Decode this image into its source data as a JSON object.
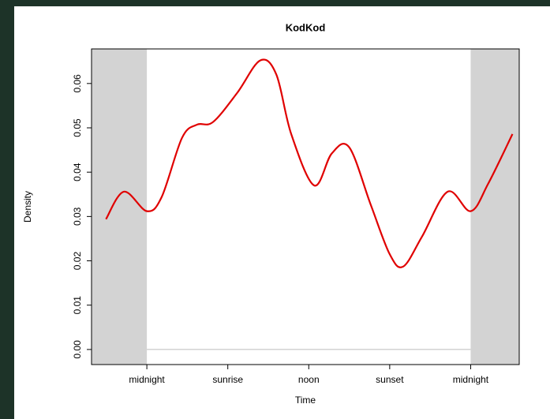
{
  "chart_data": {
    "type": "line",
    "title": "KodKod",
    "x_label": "Time",
    "y_label": "Density",
    "x": [
      -3.03,
      -1.7,
      0,
      1.1,
      2.6,
      3.7,
      4.9,
      6.7,
      8.4,
      9.6,
      10.7,
      12.4,
      13.7,
      15.0,
      16.6,
      18,
      19.0,
      20.4,
      22.3,
      24,
      25.3,
      27.1
    ],
    "series": [
      {
        "name": "Density",
        "color": "#e00000",
        "values": [
          0.0294,
          0.0356,
          0.0312,
          0.0344,
          0.0477,
          0.0507,
          0.0513,
          0.0579,
          0.0652,
          0.062,
          0.0486,
          0.037,
          0.0442,
          0.0456,
          0.0326,
          0.0215,
          0.0187,
          0.0255,
          0.0356,
          0.0312,
          0.0374,
          0.0486
        ]
      }
    ],
    "xlim": [
      -4.1,
      27.6
    ],
    "xticks": [
      {
        "value": 0,
        "label": "midnight"
      },
      {
        "value": 6,
        "label": "sunrise"
      },
      {
        "value": 12,
        "label": "noon"
      },
      {
        "value": 18,
        "label": "sunset"
      },
      {
        "value": 24,
        "label": "midnight"
      }
    ],
    "ylim": [
      -0.0034,
      0.0678
    ],
    "yticks": [
      {
        "value": 0,
        "label": "0.00"
      },
      0.01,
      0.02,
      0.03,
      0.04,
      0.05,
      0.06
    ],
    "night_shading": "#d3d3d3"
  }
}
